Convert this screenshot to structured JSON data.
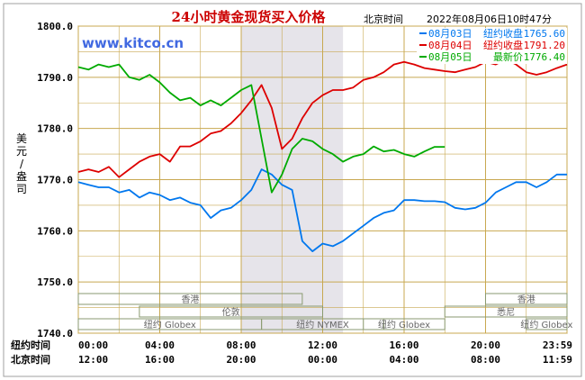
{
  "chart_data": {
    "type": "line",
    "title": "24小时黄金现货买入价格",
    "site": "www.kitco.cn",
    "timestamp_label": "北京时间",
    "timestamp": "2022年08月06日10时47分",
    "ylabel": "美元/盎司",
    "ylim": [
      1740,
      1800
    ],
    "yticks": [
      "1800.0",
      "1790.0",
      "1780.0",
      "1770.0",
      "1760.0",
      "1750.0",
      "1740.0"
    ],
    "x_rows": [
      {
        "label": "纽约时间",
        "ticks": [
          "00:00",
          "04:00",
          "08:00",
          "12:00",
          "16:00",
          "20:00",
          "23:59"
        ]
      },
      {
        "label": "北京时间",
        "ticks": [
          "12:00",
          "16:00",
          "20:00",
          "00:00",
          "04:00",
          "08:00",
          "11:59"
        ]
      }
    ],
    "xlim": [
      0,
      24
    ],
    "highlight_band": [
      8,
      13
    ],
    "grid": true,
    "legend_position": "top-right",
    "markets": [
      {
        "name": "香港",
        "start": 0,
        "end": 11,
        "row": 0
      },
      {
        "name": "伦敦",
        "start": 3,
        "end": 12,
        "row": 1
      },
      {
        "name": "纽约 Globex",
        "start": 0,
        "end": 9,
        "row": 2
      },
      {
        "name": "纽约 NYMEX",
        "start": 9,
        "end": 15,
        "row": 2
      },
      {
        "name": "纽约 Globex",
        "start": 14,
        "end": 18,
        "row": 2
      },
      {
        "name": "香港",
        "start": 20,
        "end": 24,
        "row": 0
      },
      {
        "name": "悉尼",
        "start": 18,
        "end": 24,
        "row": 1
      },
      {
        "name": "纽约 Globex",
        "start": 22,
        "end": 24,
        "row": 2
      }
    ],
    "series": [
      {
        "name": "08月03日",
        "legend_text": "纽约收盘",
        "legend_value": "1765.60",
        "color": "#0077ee",
        "x": [
          0,
          0.5,
          1,
          1.5,
          2,
          2.5,
          3,
          3.5,
          4,
          4.5,
          5,
          5.5,
          6,
          6.5,
          7,
          7.5,
          8,
          8.5,
          9,
          9.5,
          10,
          10.5,
          11,
          11.5,
          12,
          12.5,
          13,
          13.5,
          14,
          14.5,
          15,
          15.5,
          16,
          16.5,
          17,
          17.5,
          18,
          18.5,
          19,
          19.5,
          20,
          20.5,
          21,
          21.5,
          22,
          22.5,
          23,
          23.5,
          24
        ],
        "y": [
          1769.5,
          1769,
          1768.5,
          1768.5,
          1767.5,
          1768,
          1766.5,
          1767.5,
          1767,
          1766,
          1766.5,
          1765.5,
          1765,
          1762.5,
          1764,
          1764.5,
          1766,
          1768,
          1772,
          1771,
          1769,
          1768,
          1758,
          1756,
          1757.5,
          1757,
          1758,
          1759.5,
          1761,
          1762.5,
          1763.5,
          1764,
          1766,
          1766,
          1765.8,
          1765.8,
          1765.6,
          1764.5,
          1764.2,
          1764.5,
          1765.5,
          1767.5,
          1768.5,
          1769.5,
          1769.5,
          1768.5,
          1769.5,
          1771,
          1771
        ]
      },
      {
        "name": "08月04日",
        "legend_text": "纽约收盘",
        "legend_value": "1791.20",
        "color": "#dd0000",
        "x": [
          0,
          0.5,
          1,
          1.5,
          2,
          2.5,
          3,
          3.5,
          4,
          4.5,
          5,
          5.5,
          6,
          6.5,
          7,
          7.5,
          8,
          8.5,
          9,
          9.5,
          10,
          10.5,
          11,
          11.5,
          12,
          12.5,
          13,
          13.5,
          14,
          14.5,
          15,
          15.5,
          16,
          16.5,
          17,
          17.5,
          18,
          18.5,
          19,
          19.5,
          20,
          20.5,
          21,
          21.5,
          22,
          22.5,
          23,
          23.5,
          24
        ],
        "y": [
          1771.5,
          1772,
          1771.5,
          1772.5,
          1770.5,
          1772,
          1773.5,
          1774.5,
          1775,
          1773.5,
          1776.5,
          1776.5,
          1777.5,
          1779,
          1779.5,
          1781,
          1783,
          1785.5,
          1788.5,
          1784,
          1776,
          1778,
          1782,
          1785,
          1786.5,
          1787.5,
          1787.5,
          1788,
          1789.5,
          1790,
          1791,
          1792.5,
          1793,
          1792.5,
          1791.8,
          1791.5,
          1791.2,
          1791,
          1791.5,
          1792,
          1793,
          1792.5,
          1793.5,
          1792.5,
          1791,
          1790.5,
          1791,
          1791.8,
          1792.5
        ]
      },
      {
        "name": "08月05日",
        "legend_text": "最新价",
        "legend_value": "1776.40",
        "color": "#00aa00",
        "x": [
          0,
          0.5,
          1,
          1.5,
          2,
          2.5,
          3,
          3.5,
          4,
          4.5,
          5,
          5.5,
          6,
          6.5,
          7,
          7.5,
          8,
          8.5,
          9,
          9.5,
          10,
          10.5,
          11,
          11.5,
          12,
          12.5,
          13,
          13.5,
          14,
          14.5,
          15,
          15.5,
          16,
          16.5,
          17,
          17.5,
          18
        ],
        "y": [
          1792,
          1791.5,
          1792.5,
          1792,
          1792.5,
          1790,
          1789.5,
          1790.5,
          1789,
          1787,
          1785.5,
          1786,
          1784.5,
          1785.5,
          1784.5,
          1786,
          1787.5,
          1788.5,
          1778,
          1767.5,
          1771,
          1776,
          1778,
          1777.5,
          1776,
          1775,
          1773.5,
          1774.5,
          1775,
          1776.5,
          1775.5,
          1775.8,
          1775,
          1774.5,
          1775.5,
          1776.4,
          1776.4
        ]
      }
    ]
  }
}
